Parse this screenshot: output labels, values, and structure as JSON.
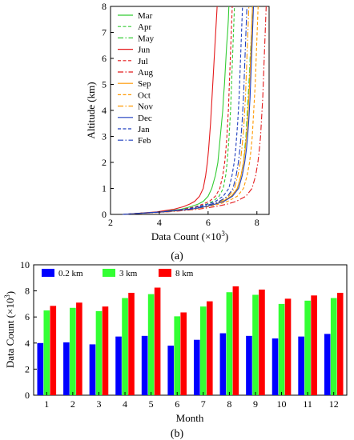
{
  "figure": {
    "panel_a_label": "(a)",
    "panel_b_label": "(b)"
  },
  "chart_data": [
    {
      "type": "line",
      "xlabel": "Data Count (×10",
      "xlabel_exp": "3",
      "xlabel_tail": ")",
      "ylabel": "Altitude (km)",
      "xlim": [
        2,
        8.5
      ],
      "ylim": [
        0,
        8
      ],
      "xticks": [
        2,
        4,
        6,
        8
      ],
      "yticks": [
        0,
        1,
        2,
        3,
        4,
        5,
        6,
        7,
        8
      ],
      "legend_position": "top-left",
      "altitudes": [
        0.0,
        0.05,
        0.1,
        0.2,
        0.3,
        0.4,
        0.5,
        0.7,
        1.0,
        1.5,
        2.0,
        2.5,
        3.0,
        3.5,
        4.0,
        4.5,
        5.0,
        5.5,
        6.0,
        6.5,
        7.0,
        7.5,
        8.0
      ],
      "series": [
        {
          "name": "Mar",
          "color": "#33cc33",
          "dash": "solid",
          "values": [
            2.5,
            3.3,
            4.0,
            4.9,
            5.3,
            5.6,
            5.8,
            6.0,
            6.15,
            6.3,
            6.4,
            6.45,
            6.5,
            6.55,
            6.6,
            6.63,
            6.67,
            6.7,
            6.73,
            6.76,
            6.8,
            6.83,
            6.85
          ]
        },
        {
          "name": "Apr",
          "color": "#33cc33",
          "dash": "dash",
          "values": [
            2.5,
            3.3,
            4.1,
            5.1,
            5.6,
            5.95,
            6.2,
            6.45,
            6.62,
            6.72,
            6.78,
            6.82,
            6.86,
            6.89,
            6.92,
            6.94,
            6.96,
            6.98,
            7.0,
            7.02,
            7.04,
            7.06,
            7.08
          ]
        },
        {
          "name": "May",
          "color": "#33cc33",
          "dash": "dashdot",
          "values": [
            2.5,
            3.3,
            4.2,
            5.3,
            5.9,
            6.3,
            6.6,
            6.95,
            7.2,
            7.35,
            7.45,
            7.5,
            7.55,
            7.58,
            7.61,
            7.64,
            7.67,
            7.7,
            7.72,
            7.75,
            7.78,
            7.8,
            7.82
          ]
        },
        {
          "name": "Jun",
          "color": "#e41a1c",
          "dash": "solid",
          "values": [
            2.5,
            3.2,
            3.9,
            4.6,
            5.0,
            5.25,
            5.45,
            5.65,
            5.8,
            5.9,
            5.97,
            6.02,
            6.06,
            6.1,
            6.13,
            6.16,
            6.19,
            6.22,
            6.25,
            6.28,
            6.31,
            6.34,
            6.37
          ]
        },
        {
          "name": "Jul",
          "color": "#e41a1c",
          "dash": "dash",
          "values": [
            2.5,
            3.3,
            4.1,
            5.0,
            5.5,
            5.8,
            6.05,
            6.3,
            6.48,
            6.6,
            6.68,
            6.73,
            6.77,
            6.8,
            6.83,
            6.85,
            6.87,
            6.89,
            6.91,
            6.93,
            6.95,
            6.97,
            6.99
          ]
        },
        {
          "name": "Aug",
          "color": "#e41a1c",
          "dash": "dashdot",
          "values": [
            2.5,
            3.4,
            4.4,
            5.6,
            6.3,
            6.8,
            7.15,
            7.55,
            7.8,
            7.95,
            8.04,
            8.1,
            8.15,
            8.18,
            8.21,
            8.24,
            8.26,
            8.28,
            8.3,
            8.32,
            8.34,
            8.36,
            8.38
          ]
        },
        {
          "name": "Sep",
          "color": "#ff9900",
          "dash": "solid",
          "values": [
            2.5,
            3.3,
            4.2,
            5.3,
            5.9,
            6.3,
            6.6,
            6.95,
            7.2,
            7.35,
            7.45,
            7.52,
            7.57,
            7.61,
            7.64,
            7.67,
            7.7,
            7.72,
            7.74,
            7.76,
            7.78,
            7.8,
            7.82
          ]
        },
        {
          "name": "Oct",
          "color": "#ff9900",
          "dash": "dash",
          "values": [
            2.5,
            3.4,
            4.3,
            5.4,
            6.0,
            6.45,
            6.8,
            7.2,
            7.45,
            7.6,
            7.7,
            7.76,
            7.81,
            7.84,
            7.87,
            7.9,
            7.93,
            7.95,
            7.97,
            7.99,
            8.01,
            8.03,
            8.05
          ]
        },
        {
          "name": "Nov",
          "color": "#ff9900",
          "dash": "dashdot",
          "values": [
            2.5,
            3.3,
            4.2,
            5.2,
            5.8,
            6.2,
            6.5,
            6.85,
            7.08,
            7.22,
            7.32,
            7.38,
            7.43,
            7.47,
            7.5,
            7.53,
            7.55,
            7.57,
            7.59,
            7.61,
            7.63,
            7.65,
            7.67
          ]
        },
        {
          "name": "Dec",
          "color": "#1f3fbf",
          "dash": "solid",
          "values": [
            2.5,
            3.3,
            4.2,
            5.3,
            5.9,
            6.3,
            6.65,
            7.0,
            7.25,
            7.4,
            7.5,
            7.57,
            7.62,
            7.66,
            7.69,
            7.72,
            7.74,
            7.76,
            7.78,
            7.8,
            7.82,
            7.84,
            7.86
          ]
        },
        {
          "name": "Jan",
          "color": "#1f3fbf",
          "dash": "dash",
          "values": [
            2.5,
            3.3,
            4.1,
            5.1,
            5.6,
            6.0,
            6.3,
            6.62,
            6.85,
            6.98,
            7.07,
            7.13,
            7.17,
            7.21,
            7.24,
            7.27,
            7.29,
            7.31,
            7.33,
            7.35,
            7.37,
            7.39,
            7.41
          ]
        },
        {
          "name": "Feb",
          "color": "#1f3fbf",
          "dash": "dashdot",
          "values": [
            2.5,
            3.3,
            4.2,
            5.2,
            5.75,
            6.15,
            6.45,
            6.8,
            7.02,
            7.15,
            7.24,
            7.3,
            7.35,
            7.39,
            7.42,
            7.45,
            7.47,
            7.49,
            7.51,
            7.53,
            7.55,
            7.57,
            7.59
          ]
        }
      ]
    },
    {
      "type": "bar",
      "xlabel": "Month",
      "ylabel": "Data Count (×10",
      "ylabel_exp": "3",
      "ylabel_tail": ")",
      "ylim": [
        0,
        10
      ],
      "yticks": [
        0,
        2,
        4,
        6,
        8,
        10
      ],
      "categories": [
        "1",
        "2",
        "3",
        "4",
        "5",
        "6",
        "7",
        "8",
        "9",
        "10",
        "11",
        "12"
      ],
      "legend_position": "top-left",
      "series": [
        {
          "name": "0.2 km",
          "color": "#0000ff",
          "values": [
            4.0,
            4.05,
            3.9,
            4.5,
            4.55,
            3.8,
            4.25,
            4.75,
            4.55,
            4.35,
            4.5,
            4.7
          ]
        },
        {
          "name": "3 km",
          "color": "#33ff33",
          "values": [
            6.5,
            6.7,
            6.45,
            7.45,
            7.75,
            6.05,
            6.8,
            7.9,
            7.7,
            7.0,
            7.25,
            7.45
          ]
        },
        {
          "name": "8 km",
          "color": "#ff0000",
          "values": [
            6.85,
            7.1,
            6.8,
            7.85,
            8.25,
            6.35,
            7.2,
            8.35,
            8.1,
            7.4,
            7.65,
            7.85
          ]
        }
      ]
    }
  ]
}
